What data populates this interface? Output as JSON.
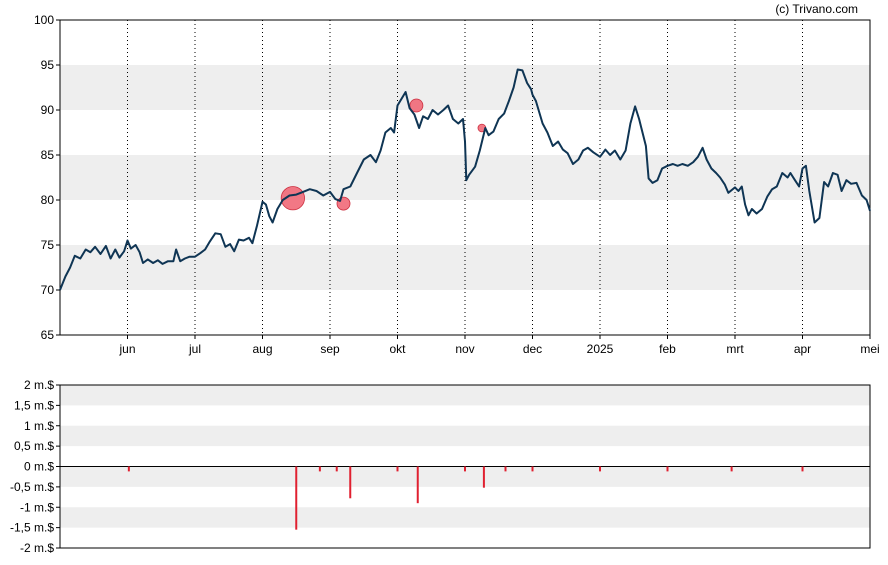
{
  "credit": "(c) Trivano.com",
  "colors": {
    "price_line": "#0f3554",
    "band": "#eeeeee",
    "frame": "#000000",
    "marker": "#f06070",
    "marker_stroke": "#cc3040",
    "volume_bar": "#e02030",
    "vgrid": "#000000"
  },
  "chart_data": [
    {
      "type": "line",
      "title": "",
      "xlabel": "",
      "ylabel": "",
      "ylim": [
        65,
        100
      ],
      "y_ticks": [
        100,
        95,
        90,
        85,
        80,
        75,
        70,
        65
      ],
      "x_range": [
        0,
        12.0
      ],
      "x_ticks": [
        {
          "label": "jun",
          "x": 1.0
        },
        {
          "label": "jul",
          "x": 2.0
        },
        {
          "label": "aug",
          "x": 3.0
        },
        {
          "label": "sep",
          "x": 4.0
        },
        {
          "label": "okt",
          "x": 5.0
        },
        {
          "label": "nov",
          "x": 6.0
        },
        {
          "label": "dec",
          "x": 7.0
        },
        {
          "label": "2025",
          "x": 8.0
        },
        {
          "label": "feb",
          "x": 9.0
        },
        {
          "label": "mrt",
          "x": 10.0
        },
        {
          "label": "apr",
          "x": 11.0
        },
        {
          "label": "mei",
          "x": 12.0
        }
      ],
      "grid": "alternating horizontal bands, dotted vertical month lines",
      "series": [
        {
          "points": [
            [
              0.0,
              70.0
            ],
            [
              0.08,
              71.5
            ],
            [
              0.15,
              72.5
            ],
            [
              0.22,
              73.8
            ],
            [
              0.3,
              73.5
            ],
            [
              0.38,
              74.5
            ],
            [
              0.45,
              74.2
            ],
            [
              0.52,
              74.8
            ],
            [
              0.6,
              74.0
            ],
            [
              0.68,
              74.9
            ],
            [
              0.75,
              73.5
            ],
            [
              0.82,
              74.5
            ],
            [
              0.88,
              73.6
            ],
            [
              0.95,
              74.3
            ],
            [
              1.0,
              75.5
            ],
            [
              1.05,
              74.6
            ],
            [
              1.12,
              75.0
            ],
            [
              1.18,
              74.2
            ],
            [
              1.23,
              73.0
            ],
            [
              1.3,
              73.4
            ],
            [
              1.38,
              73.0
            ],
            [
              1.45,
              73.3
            ],
            [
              1.52,
              72.9
            ],
            [
              1.6,
              73.2
            ],
            [
              1.68,
              73.2
            ],
            [
              1.72,
              74.5
            ],
            [
              1.78,
              73.2
            ],
            [
              1.85,
              73.5
            ],
            [
              1.92,
              73.7
            ],
            [
              2.0,
              73.7
            ],
            [
              2.08,
              74.1
            ],
            [
              2.15,
              74.5
            ],
            [
              2.22,
              75.4
            ],
            [
              2.3,
              76.3
            ],
            [
              2.38,
              76.2
            ],
            [
              2.45,
              74.8
            ],
            [
              2.52,
              75.1
            ],
            [
              2.58,
              74.3
            ],
            [
              2.65,
              75.6
            ],
            [
              2.72,
              75.5
            ],
            [
              2.8,
              75.8
            ],
            [
              2.85,
              75.2
            ],
            [
              2.92,
              77.2
            ],
            [
              3.0,
              79.8
            ],
            [
              3.05,
              79.5
            ],
            [
              3.1,
              78.2
            ],
            [
              3.15,
              77.5
            ],
            [
              3.22,
              79.0
            ],
            [
              3.3,
              80.0
            ],
            [
              3.4,
              80.5
            ],
            [
              3.5,
              80.6
            ],
            [
              3.6,
              80.9
            ],
            [
              3.7,
              81.2
            ],
            [
              3.8,
              81.0
            ],
            [
              3.9,
              80.5
            ],
            [
              4.0,
              80.9
            ],
            [
              4.08,
              80.1
            ],
            [
              4.15,
              79.9
            ],
            [
              4.2,
              81.2
            ],
            [
              4.3,
              81.5
            ],
            [
              4.4,
              83.0
            ],
            [
              4.5,
              84.5
            ],
            [
              4.6,
              85.0
            ],
            [
              4.68,
              84.2
            ],
            [
              4.75,
              85.5
            ],
            [
              4.82,
              87.5
            ],
            [
              4.9,
              88.0
            ],
            [
              4.95,
              87.5
            ],
            [
              5.0,
              90.5
            ],
            [
              5.08,
              91.5
            ],
            [
              5.12,
              92.0
            ],
            [
              5.18,
              90.2
            ],
            [
              5.25,
              89.5
            ],
            [
              5.32,
              88.0
            ],
            [
              5.38,
              89.3
            ],
            [
              5.45,
              89.0
            ],
            [
              5.52,
              90.0
            ],
            [
              5.6,
              89.5
            ],
            [
              5.68,
              90.0
            ],
            [
              5.75,
              90.5
            ],
            [
              5.82,
              89.0
            ],
            [
              5.9,
              88.5
            ],
            [
              5.97,
              89.0
            ],
            [
              6.0,
              86.5
            ],
            [
              6.02,
              82.2
            ],
            [
              6.06,
              82.8
            ],
            [
              6.15,
              83.7
            ],
            [
              6.22,
              85.5
            ],
            [
              6.3,
              88.0
            ],
            [
              6.35,
              87.2
            ],
            [
              6.42,
              87.6
            ],
            [
              6.5,
              89.0
            ],
            [
              6.58,
              89.6
            ],
            [
              6.65,
              91.0
            ],
            [
              6.72,
              92.5
            ],
            [
              6.78,
              94.5
            ],
            [
              6.85,
              94.4
            ],
            [
              6.92,
              93.0
            ],
            [
              6.98,
              92.3
            ],
            [
              7.0,
              91.7
            ],
            [
              7.05,
              91.0
            ],
            [
              7.15,
              88.5
            ],
            [
              7.22,
              87.5
            ],
            [
              7.3,
              86.0
            ],
            [
              7.38,
              86.5
            ],
            [
              7.45,
              85.6
            ],
            [
              7.52,
              85.2
            ],
            [
              7.6,
              84.0
            ],
            [
              7.68,
              84.5
            ],
            [
              7.75,
              85.5
            ],
            [
              7.82,
              85.8
            ],
            [
              7.9,
              85.3
            ],
            [
              8.0,
              84.8
            ],
            [
              8.08,
              85.6
            ],
            [
              8.15,
              85.0
            ],
            [
              8.22,
              85.5
            ],
            [
              8.3,
              84.5
            ],
            [
              8.38,
              85.5
            ],
            [
              8.45,
              88.5
            ],
            [
              8.52,
              90.4
            ],
            [
              8.58,
              89.0
            ],
            [
              8.62,
              87.8
            ],
            [
              8.68,
              86.0
            ],
            [
              8.72,
              82.4
            ],
            [
              8.78,
              81.9
            ],
            [
              8.85,
              82.2
            ],
            [
              8.92,
              83.5
            ],
            [
              9.0,
              83.8
            ],
            [
              9.08,
              84.0
            ],
            [
              9.15,
              83.8
            ],
            [
              9.22,
              84.0
            ],
            [
              9.3,
              83.8
            ],
            [
              9.38,
              84.2
            ],
            [
              9.45,
              84.8
            ],
            [
              9.52,
              85.8
            ],
            [
              9.58,
              84.5
            ],
            [
              9.65,
              83.5
            ],
            [
              9.72,
              83.0
            ],
            [
              9.78,
              82.5
            ],
            [
              9.85,
              81.7
            ],
            [
              9.9,
              80.8
            ],
            [
              10.0,
              81.4
            ],
            [
              10.05,
              81.0
            ],
            [
              10.1,
              81.5
            ],
            [
              10.15,
              79.5
            ],
            [
              10.2,
              78.3
            ],
            [
              10.25,
              79.0
            ],
            [
              10.32,
              78.5
            ],
            [
              10.4,
              79.0
            ],
            [
              10.48,
              80.4
            ],
            [
              10.55,
              81.2
            ],
            [
              10.62,
              81.5
            ],
            [
              10.7,
              83.0
            ],
            [
              10.78,
              82.5
            ],
            [
              10.82,
              83.0
            ],
            [
              10.88,
              82.3
            ],
            [
              10.95,
              81.5
            ],
            [
              11.0,
              83.5
            ],
            [
              11.05,
              83.8
            ],
            [
              11.1,
              81.0
            ],
            [
              11.18,
              77.5
            ],
            [
              11.25,
              78.0
            ],
            [
              11.32,
              82.0
            ],
            [
              11.38,
              81.5
            ],
            [
              11.45,
              83.0
            ],
            [
              11.52,
              82.8
            ],
            [
              11.58,
              81.0
            ],
            [
              11.65,
              82.2
            ],
            [
              11.72,
              81.8
            ],
            [
              11.8,
              81.9
            ],
            [
              11.88,
              80.5
            ],
            [
              11.95,
              80.0
            ],
            [
              12.0,
              78.8
            ]
          ]
        }
      ],
      "markers": [
        {
          "x": 3.45,
          "y": 80.2,
          "size": 9
        },
        {
          "x": 4.2,
          "y": 79.6,
          "size": 5
        },
        {
          "x": 5.28,
          "y": 90.5,
          "size": 5
        },
        {
          "x": 6.25,
          "y": 88.0,
          "size": 3
        }
      ]
    },
    {
      "type": "bar",
      "title": "",
      "xlabel": "",
      "ylabel": "",
      "ylim": [
        -2,
        2
      ],
      "y_ticks": [
        {
          "value": 2,
          "label": "2 m.$"
        },
        {
          "value": 1.5,
          "label": "1,5 m.$"
        },
        {
          "value": 1,
          "label": "1 m.$"
        },
        {
          "value": 0.5,
          "label": "0,5 m.$"
        },
        {
          "value": 0,
          "label": "0 m.$"
        },
        {
          "value": -0.5,
          "label": "-0,5 m.$"
        },
        {
          "value": -1,
          "label": "-1 m.$"
        },
        {
          "value": -1.5,
          "label": "-1,5 m.$"
        },
        {
          "value": -2,
          "label": "-2 m.$"
        }
      ],
      "x_range": [
        0,
        12.0
      ],
      "bars": [
        {
          "x": 1.02,
          "value": -0.12
        },
        {
          "x": 3.5,
          "value": -1.55
        },
        {
          "x": 3.85,
          "value": -0.12
        },
        {
          "x": 4.1,
          "value": -0.12
        },
        {
          "x": 4.3,
          "value": -0.78
        },
        {
          "x": 5.0,
          "value": -0.12
        },
        {
          "x": 5.3,
          "value": -0.9
        },
        {
          "x": 6.0,
          "value": -0.12
        },
        {
          "x": 6.28,
          "value": -0.52
        },
        {
          "x": 6.6,
          "value": -0.12
        },
        {
          "x": 7.0,
          "value": -0.12
        },
        {
          "x": 8.0,
          "value": -0.12
        },
        {
          "x": 9.0,
          "value": -0.12
        },
        {
          "x": 9.95,
          "value": -0.12
        },
        {
          "x": 11.0,
          "value": -0.12
        }
      ]
    }
  ]
}
